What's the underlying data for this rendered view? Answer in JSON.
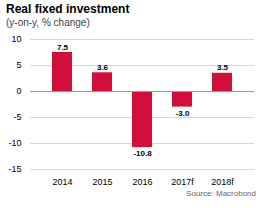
{
  "chart_data": {
    "type": "bar",
    "title": "Real fixed investment",
    "subtitle": "(y-on-y, % change)",
    "caption": "Source: Macrobond",
    "categories": [
      "2014",
      "2015",
      "2016",
      "2017f",
      "2018f"
    ],
    "values": [
      7.5,
      3.6,
      -10.8,
      -3.0,
      3.5
    ],
    "value_labels": [
      "7.5",
      "3.6",
      "-10.8",
      "-3.0",
      "3.5"
    ],
    "color": "#d0103a",
    "ylim": [
      -15,
      10
    ],
    "yticks": [
      -15,
      -10,
      -5,
      0,
      5,
      10
    ],
    "grid": true,
    "data_labels": true
  }
}
